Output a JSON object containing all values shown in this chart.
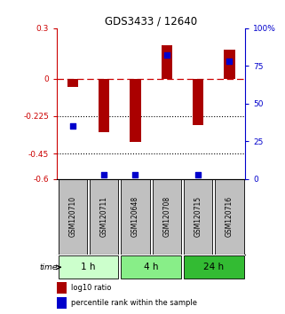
{
  "title": "GDS3433 / 12640",
  "samples": [
    "GSM120710",
    "GSM120711",
    "GSM120648",
    "GSM120708",
    "GSM120715",
    "GSM120716"
  ],
  "log10_ratio": [
    -0.05,
    -0.32,
    -0.38,
    0.2,
    -0.28,
    0.17
  ],
  "percentile_rank": [
    35,
    3,
    3,
    82,
    3,
    78
  ],
  "ylim_left": [
    -0.6,
    0.3
  ],
  "ylim_right": [
    0,
    100
  ],
  "yticks_left": [
    0.3,
    0,
    -0.225,
    -0.45,
    -0.6
  ],
  "yticks_right": [
    100,
    75,
    50,
    25,
    0
  ],
  "ytick_labels_left": [
    "0.3",
    "0",
    "-0.225",
    "-0.45",
    "-0.6"
  ],
  "ytick_labels_right": [
    "100%",
    "75",
    "50",
    "25",
    "0"
  ],
  "hlines_dotted": [
    -0.225,
    -0.45
  ],
  "bar_color": "#aa0000",
  "dot_color": "#0000cc",
  "time_groups": [
    {
      "label": "1 h",
      "start": 0,
      "end": 1,
      "color": "#ccffcc"
    },
    {
      "label": "4 h",
      "start": 2,
      "end": 3,
      "color": "#88ee88"
    },
    {
      "label": "24 h",
      "start": 4,
      "end": 5,
      "color": "#33bb33"
    }
  ],
  "legend_bar_label": "log10 ratio",
  "legend_dot_label": "percentile rank within the sample",
  "xlabel_time": "time",
  "bar_width": 0.35,
  "dot_size": 18,
  "background_color": "#ffffff",
  "plot_bg_color": "#ffffff",
  "left_axis_color": "#cc0000",
  "right_axis_color": "#0000cc",
  "zero_line_color": "#cc0000",
  "dotted_line_color": "#000000",
  "sample_box_color": "#c0c0c0"
}
